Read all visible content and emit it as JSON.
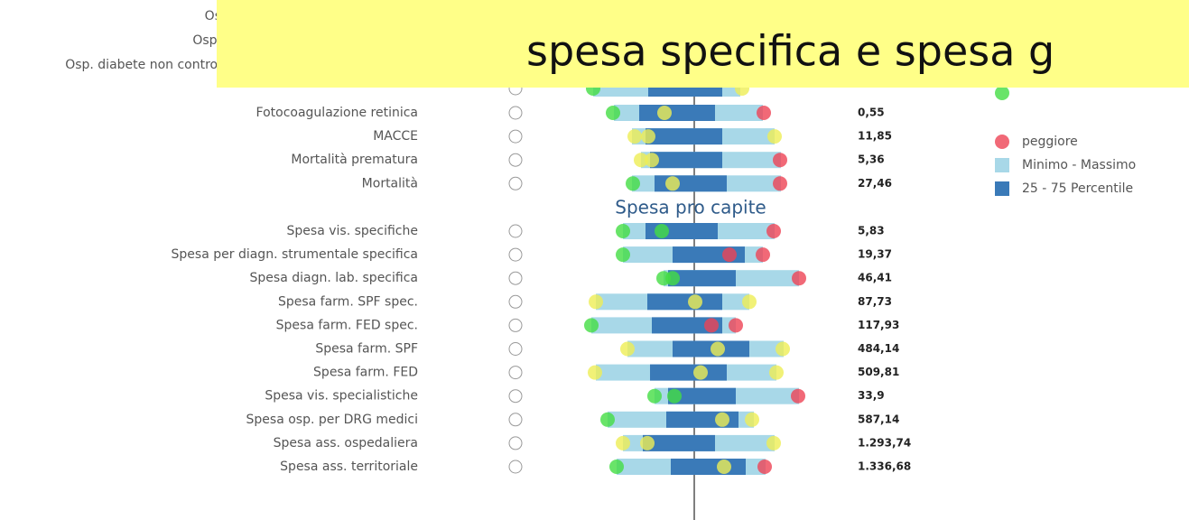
{
  "title": "spesa specifica e spesa g",
  "clipped_labels": [
    "Os",
    "Osp.",
    "Osp. diabete non control"
  ],
  "rows_top": [
    {
      "label": "Fotocoagulazione retinica",
      "value": "0,55"
    },
    {
      "label": "MACCE",
      "value": "11,85"
    },
    {
      "label": "Mortalità prematura",
      "value": "5,36"
    },
    {
      "label": "Mortalità",
      "value": "27,46"
    }
  ],
  "section_header": "Spesa pro capite",
  "rows_spesa": [
    {
      "label": "Spesa vis. specifiche",
      "value": "5,83"
    },
    {
      "label": "Spesa per diagn. strumentale specifica",
      "value": "19,37"
    },
    {
      "label": "Spesa diagn. lab. specifica",
      "value": "46,41"
    },
    {
      "label": "Spesa farm. SPF spec.",
      "value": "87,73"
    },
    {
      "label": "Spesa farm. FED spec.",
      "value": "117,93"
    },
    {
      "label": "Spesa farm. SPF",
      "value": "484,14"
    },
    {
      "label": "Spesa farm. FED",
      "value": "509,81"
    },
    {
      "label": "Spesa vis. specialistiche",
      "value": "33,9"
    },
    {
      "label": "Spesa osp. per DRG medici",
      "value": "587,14"
    },
    {
      "label": "Spesa ass. ospedaliera",
      "value": "1.293,74"
    },
    {
      "label": "Spesa ass. territoriale",
      "value": "1.336,68"
    }
  ],
  "legend": [
    "peggiore",
    "Minimo - Massimo",
    "25 - 75 Percentile"
  ]
}
